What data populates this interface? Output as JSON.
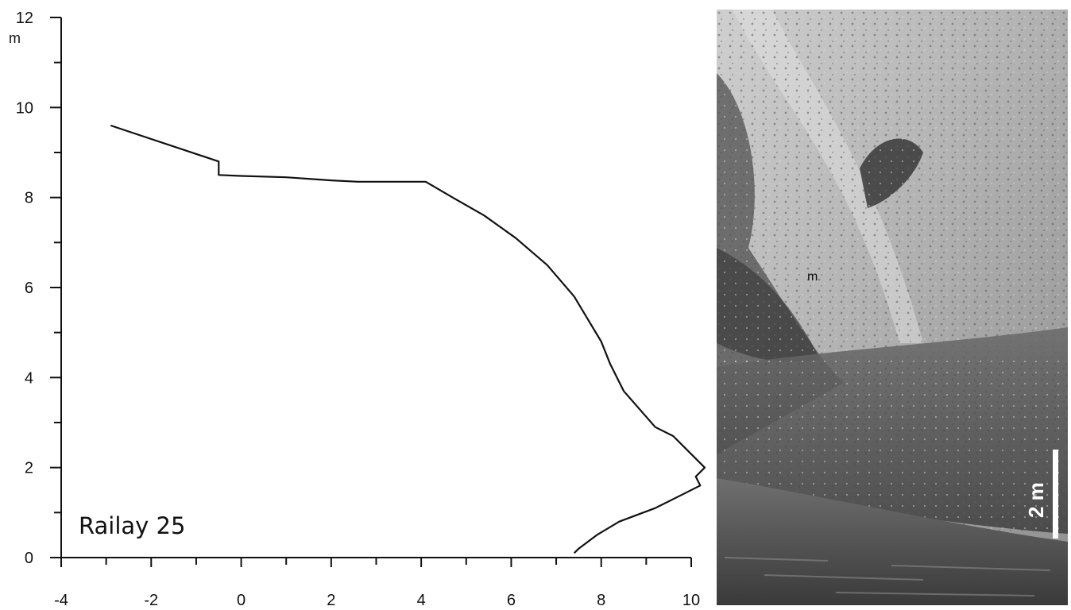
{
  "chart_data": {
    "type": "line",
    "title": "Railay 25",
    "xlabel": "",
    "ylabel": "",
    "y_unit": "m",
    "xlim": [
      -4,
      10
    ],
    "ylim": [
      0,
      12
    ],
    "x_ticks": [
      "-4",
      "-2",
      "0",
      "2",
      "4",
      "6",
      "8",
      "10"
    ],
    "y_ticks": [
      "0",
      "2",
      "4",
      "6",
      "8",
      "10",
      "12"
    ],
    "grid": false,
    "series": [
      {
        "points": [
          [
            7.4,
            0.1
          ],
          [
            7.5,
            0.2
          ],
          [
            7.9,
            0.5
          ],
          [
            8.4,
            0.8
          ],
          [
            9.2,
            1.1
          ],
          [
            9.8,
            1.4
          ],
          [
            10.2,
            1.6
          ],
          [
            10.1,
            1.8
          ],
          [
            10.3,
            2.0
          ],
          [
            10.0,
            2.3
          ],
          [
            9.6,
            2.7
          ],
          [
            9.2,
            2.9
          ],
          [
            8.5,
            3.7
          ],
          [
            8.2,
            4.3
          ],
          [
            8.0,
            4.8
          ],
          [
            7.7,
            5.3
          ],
          [
            7.4,
            5.8
          ],
          [
            6.8,
            6.5
          ],
          [
            6.1,
            7.1
          ],
          [
            5.4,
            7.6
          ],
          [
            4.7,
            8.0
          ],
          [
            4.1,
            8.35
          ],
          [
            2.6,
            8.35
          ],
          [
            2.0,
            8.38
          ],
          [
            1.0,
            8.45
          ],
          [
            0.0,
            8.48
          ],
          [
            -0.5,
            8.5
          ],
          [
            -0.5,
            8.8
          ],
          [
            -2.9,
            9.6
          ]
        ]
      }
    ]
  },
  "photo": {
    "scale_bar_label": "2 m",
    "annotation": "m"
  }
}
